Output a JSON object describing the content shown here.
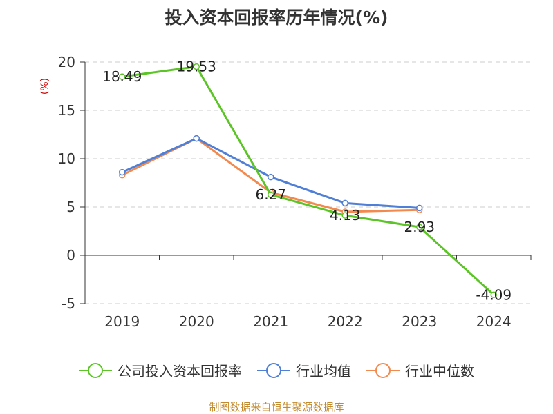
{
  "title": "投入资本回报率历年情况(%)",
  "footer": "制图数据来自恒生聚源数据库",
  "colors": {
    "grid": "#cccccc",
    "axis": "#333333",
    "ylabel": "#cc0000"
  },
  "chart_data": {
    "type": "line",
    "ylabel": "(%)",
    "ylim": [
      -5,
      20
    ],
    "yticks": [
      -5,
      0,
      5,
      10,
      15,
      20
    ],
    "categories": [
      "2019",
      "2020",
      "2021",
      "2022",
      "2023",
      "2024"
    ],
    "grid": true,
    "legend_position": "bottom",
    "series": [
      {
        "name": "公司投入资本回报率",
        "color": "#5cc427",
        "values": [
          18.49,
          19.53,
          6.27,
          4.13,
          2.93,
          -4.09
        ],
        "labels": [
          "18.49",
          "19.53",
          "6.27",
          "4.13",
          "2.93",
          "-4.09"
        ]
      },
      {
        "name": "行业均值",
        "color": "#4f7fd6",
        "values": [
          8.6,
          12.1,
          8.1,
          5.4,
          4.9,
          null
        ]
      },
      {
        "name": "行业中位数",
        "color": "#f28a50",
        "values": [
          8.3,
          12.1,
          6.5,
          4.5,
          4.7,
          null
        ]
      }
    ]
  }
}
